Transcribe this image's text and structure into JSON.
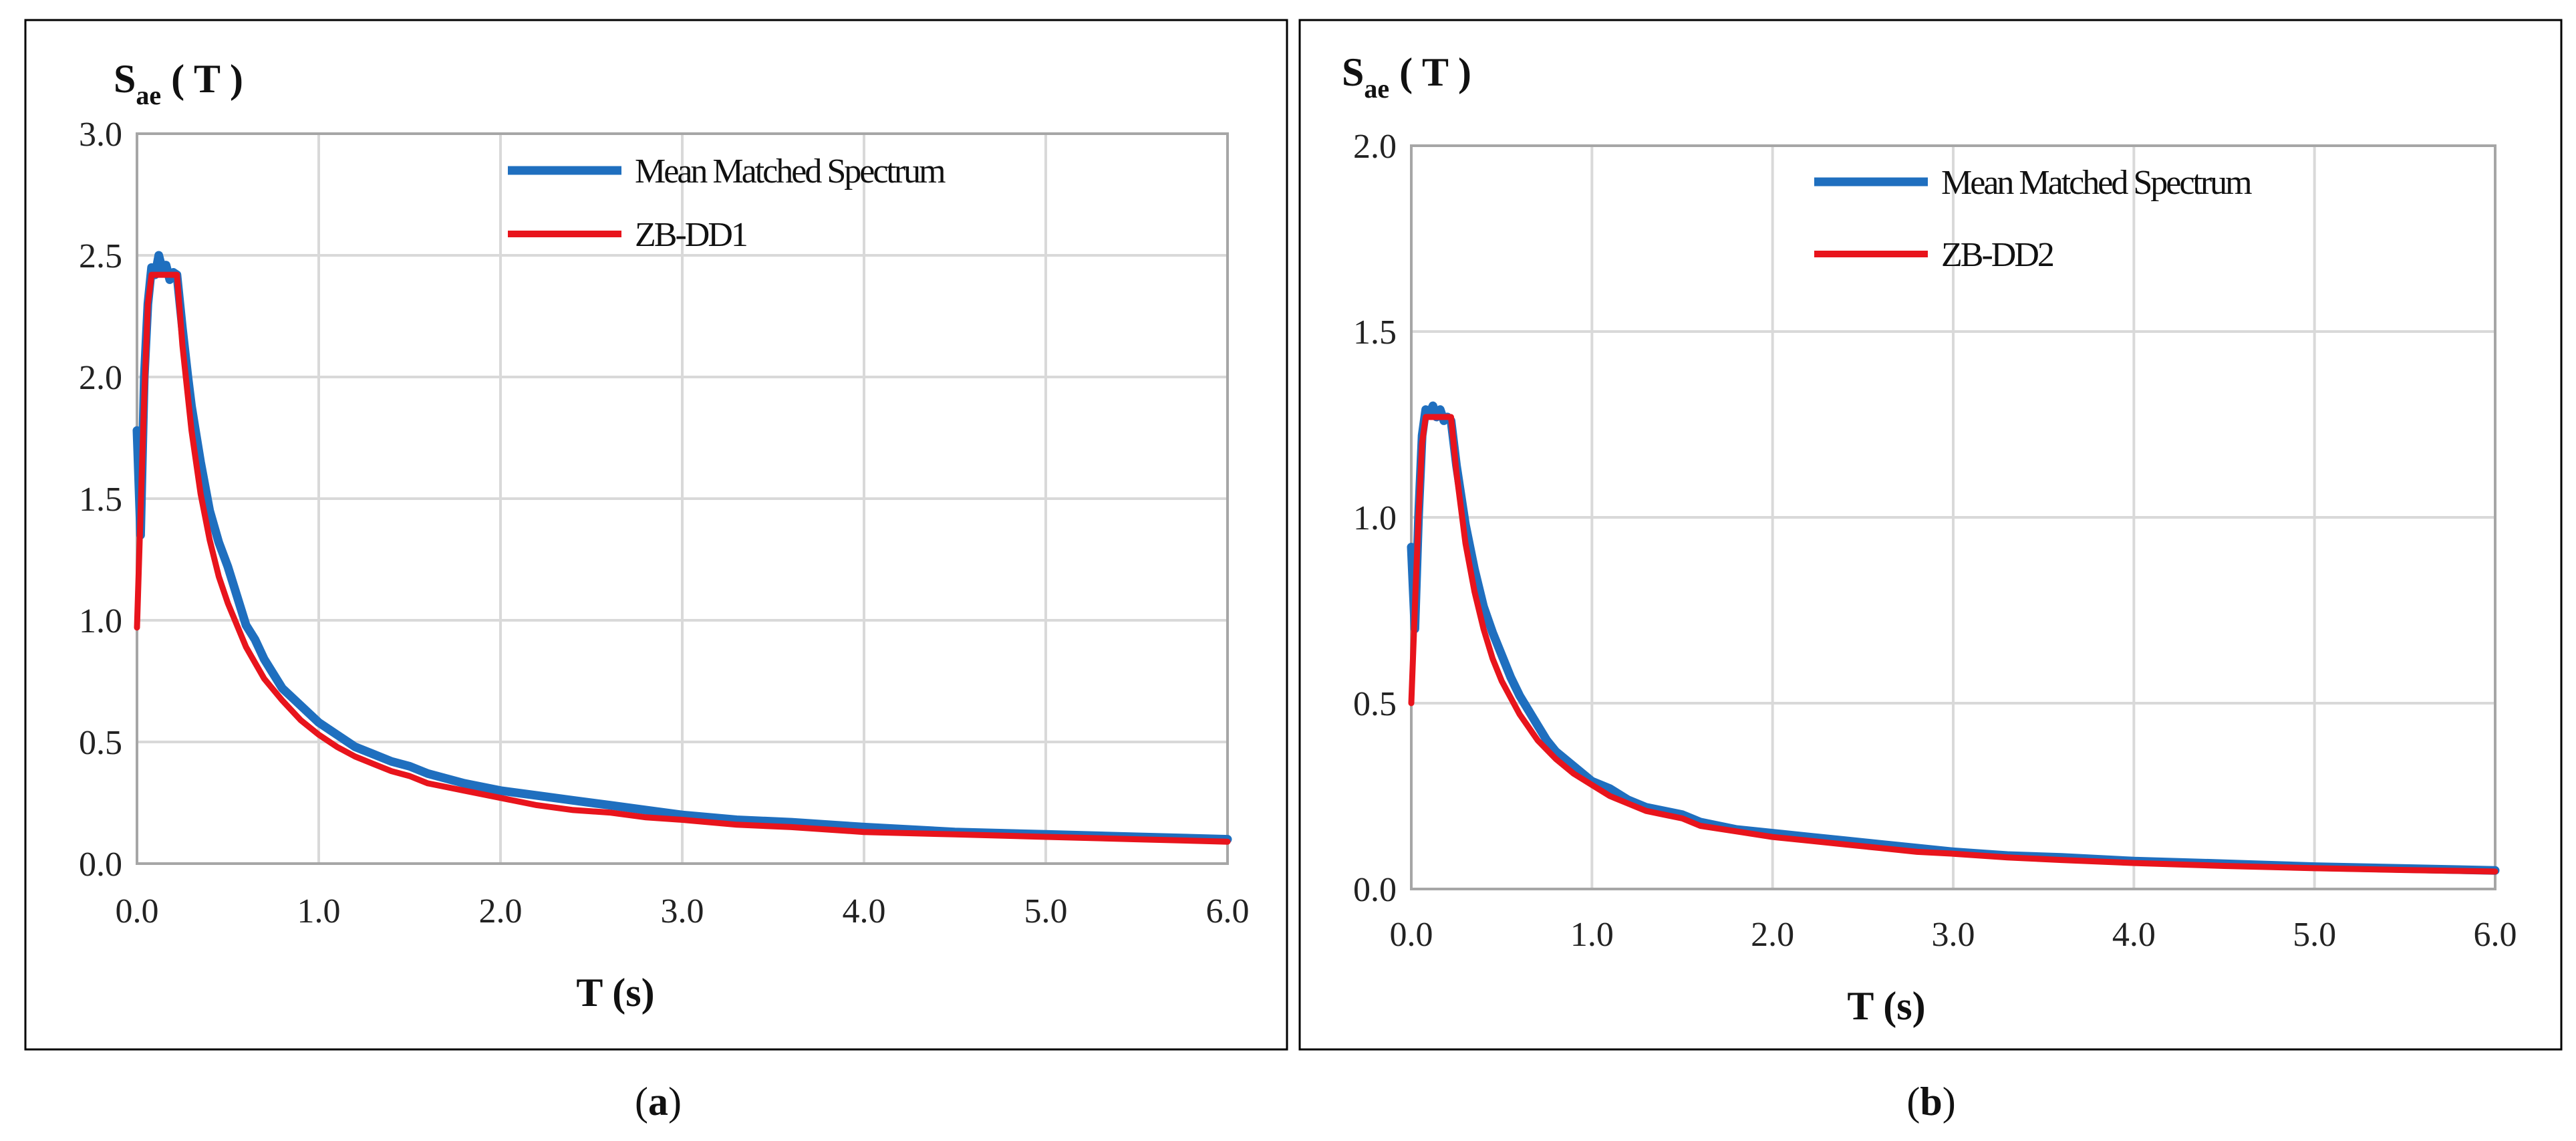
{
  "chart_data": [
    {
      "type": "line",
      "panel": "a",
      "ylabel_main": "S",
      "ylabel_sub": "ae",
      "ylabel_suffix": " ( T )",
      "xlabel": "T (s)",
      "xlim": [
        0,
        6
      ],
      "ylim": [
        0,
        3
      ],
      "x_ticks": [
        "0.0",
        "1.0",
        "2.0",
        "3.0",
        "4.0",
        "5.0",
        "6.0"
      ],
      "y_ticks": [
        "0.0",
        "0.5",
        "1.0",
        "1.5",
        "2.0",
        "2.5",
        "3.0"
      ],
      "grid": true,
      "legend_position": "top-right",
      "series": [
        {
          "name": "Mean Matched Spectrum",
          "color": "#1f6fbf",
          "points": [
            [
              0,
              1.78
            ],
            [
              0.02,
              1.35
            ],
            [
              0.04,
              2.0
            ],
            [
              0.06,
              2.3
            ],
            [
              0.08,
              2.45
            ],
            [
              0.1,
              2.42
            ],
            [
              0.12,
              2.5
            ],
            [
              0.14,
              2.44
            ],
            [
              0.16,
              2.46
            ],
            [
              0.18,
              2.4
            ],
            [
              0.2,
              2.43
            ],
            [
              0.22,
              2.42
            ],
            [
              0.25,
              2.2
            ],
            [
              0.28,
              2.0
            ],
            [
              0.3,
              1.88
            ],
            [
              0.35,
              1.65
            ],
            [
              0.4,
              1.45
            ],
            [
              0.45,
              1.32
            ],
            [
              0.5,
              1.22
            ],
            [
              0.55,
              1.1
            ],
            [
              0.6,
              0.98
            ],
            [
              0.65,
              0.92
            ],
            [
              0.7,
              0.84
            ],
            [
              0.75,
              0.78
            ],
            [
              0.8,
              0.72
            ],
            [
              0.9,
              0.65
            ],
            [
              1.0,
              0.58
            ],
            [
              1.1,
              0.53
            ],
            [
              1.2,
              0.48
            ],
            [
              1.3,
              0.45
            ],
            [
              1.4,
              0.42
            ],
            [
              1.5,
              0.4
            ],
            [
              1.6,
              0.37
            ],
            [
              1.8,
              0.33
            ],
            [
              2.0,
              0.3
            ],
            [
              2.2,
              0.28
            ],
            [
              2.4,
              0.26
            ],
            [
              2.6,
              0.24
            ],
            [
              2.8,
              0.22
            ],
            [
              3.0,
              0.2
            ],
            [
              3.3,
              0.18
            ],
            [
              3.6,
              0.17
            ],
            [
              4.0,
              0.15
            ],
            [
              4.5,
              0.13
            ],
            [
              5.0,
              0.12
            ],
            [
              5.5,
              0.11
            ],
            [
              6.0,
              0.1
            ]
          ]
        },
        {
          "name": "ZB-DD1",
          "color": "#e8141c",
          "points": [
            [
              0,
              0.97
            ],
            [
              0.02,
              1.45
            ],
            [
              0.04,
              1.92
            ],
            [
              0.06,
              2.3
            ],
            [
              0.08,
              2.42
            ],
            [
              0.22,
              2.42
            ],
            [
              0.25,
              2.13
            ],
            [
              0.3,
              1.78
            ],
            [
              0.35,
              1.52
            ],
            [
              0.4,
              1.33
            ],
            [
              0.45,
              1.18
            ],
            [
              0.5,
              1.07
            ],
            [
              0.6,
              0.89
            ],
            [
              0.7,
              0.76
            ],
            [
              0.8,
              0.67
            ],
            [
              0.9,
              0.59
            ],
            [
              1.0,
              0.53
            ],
            [
              1.1,
              0.48
            ],
            [
              1.2,
              0.44
            ],
            [
              1.3,
              0.41
            ],
            [
              1.4,
              0.38
            ],
            [
              1.5,
              0.36
            ],
            [
              1.6,
              0.33
            ],
            [
              1.8,
              0.3
            ],
            [
              2.0,
              0.27
            ],
            [
              2.2,
              0.24
            ],
            [
              2.4,
              0.22
            ],
            [
              2.6,
              0.21
            ],
            [
              2.8,
              0.19
            ],
            [
              3.0,
              0.18
            ],
            [
              3.3,
              0.16
            ],
            [
              3.6,
              0.15
            ],
            [
              4.0,
              0.13
            ],
            [
              4.5,
              0.12
            ],
            [
              5.0,
              0.11
            ],
            [
              5.5,
              0.1
            ],
            [
              6.0,
              0.09
            ]
          ]
        }
      ]
    },
    {
      "type": "line",
      "panel": "b",
      "ylabel_main": "S",
      "ylabel_sub": "ae",
      "ylabel_suffix": " ( T )",
      "xlabel": "T (s)",
      "xlim": [
        0,
        6
      ],
      "ylim": [
        0,
        2
      ],
      "x_ticks": [
        "0.0",
        "1.0",
        "2.0",
        "3.0",
        "4.0",
        "5.0",
        "6.0"
      ],
      "y_ticks": [
        "0.0",
        "0.5",
        "1.0",
        "1.5",
        "2.0"
      ],
      "grid": true,
      "legend_position": "top-right",
      "series": [
        {
          "name": "Mean Matched Spectrum",
          "color": "#1f6fbf",
          "points": [
            [
              0,
              0.92
            ],
            [
              0.02,
              0.7
            ],
            [
              0.04,
              1.0
            ],
            [
              0.06,
              1.22
            ],
            [
              0.08,
              1.29
            ],
            [
              0.1,
              1.28
            ],
            [
              0.12,
              1.3
            ],
            [
              0.14,
              1.27
            ],
            [
              0.16,
              1.29
            ],
            [
              0.18,
              1.26
            ],
            [
              0.2,
              1.27
            ],
            [
              0.22,
              1.26
            ],
            [
              0.25,
              1.14
            ],
            [
              0.3,
              0.98
            ],
            [
              0.35,
              0.86
            ],
            [
              0.4,
              0.76
            ],
            [
              0.45,
              0.69
            ],
            [
              0.5,
              0.63
            ],
            [
              0.55,
              0.57
            ],
            [
              0.6,
              0.52
            ],
            [
              0.65,
              0.48
            ],
            [
              0.7,
              0.44
            ],
            [
              0.75,
              0.4
            ],
            [
              0.8,
              0.37
            ],
            [
              0.9,
              0.33
            ],
            [
              1.0,
              0.29
            ],
            [
              1.1,
              0.27
            ],
            [
              1.2,
              0.24
            ],
            [
              1.3,
              0.22
            ],
            [
              1.4,
              0.21
            ],
            [
              1.5,
              0.2
            ],
            [
              1.6,
              0.18
            ],
            [
              1.8,
              0.16
            ],
            [
              2.0,
              0.15
            ],
            [
              2.2,
              0.14
            ],
            [
              2.4,
              0.13
            ],
            [
              2.6,
              0.12
            ],
            [
              2.8,
              0.11
            ],
            [
              3.0,
              0.1
            ],
            [
              3.3,
              0.09
            ],
            [
              3.6,
              0.085
            ],
            [
              4.0,
              0.075
            ],
            [
              4.5,
              0.068
            ],
            [
              5.0,
              0.06
            ],
            [
              5.5,
              0.055
            ],
            [
              6.0,
              0.05
            ]
          ]
        },
        {
          "name": "ZB-DD2",
          "color": "#e8141c",
          "points": [
            [
              0,
              0.5
            ],
            [
              0.02,
              0.76
            ],
            [
              0.04,
              1.0
            ],
            [
              0.06,
              1.2
            ],
            [
              0.08,
              1.27
            ],
            [
              0.22,
              1.27
            ],
            [
              0.25,
              1.12
            ],
            [
              0.3,
              0.93
            ],
            [
              0.35,
              0.8
            ],
            [
              0.4,
              0.7
            ],
            [
              0.45,
              0.62
            ],
            [
              0.5,
              0.56
            ],
            [
              0.6,
              0.47
            ],
            [
              0.7,
              0.4
            ],
            [
              0.8,
              0.35
            ],
            [
              0.9,
              0.31
            ],
            [
              1.0,
              0.28
            ],
            [
              1.1,
              0.25
            ],
            [
              1.2,
              0.23
            ],
            [
              1.3,
              0.21
            ],
            [
              1.4,
              0.2
            ],
            [
              1.5,
              0.19
            ],
            [
              1.6,
              0.17
            ],
            [
              1.8,
              0.155
            ],
            [
              2.0,
              0.14
            ],
            [
              2.2,
              0.13
            ],
            [
              2.4,
              0.12
            ],
            [
              2.6,
              0.11
            ],
            [
              2.8,
              0.1
            ],
            [
              3.0,
              0.095
            ],
            [
              3.3,
              0.085
            ],
            [
              3.6,
              0.078
            ],
            [
              4.0,
              0.07
            ],
            [
              4.5,
              0.062
            ],
            [
              5.0,
              0.056
            ],
            [
              5.5,
              0.051
            ],
            [
              6.0,
              0.047
            ]
          ]
        }
      ]
    }
  ],
  "captions": {
    "a": {
      "open": "(",
      "letter": "a",
      "close": ")"
    },
    "b": {
      "open": "(",
      "letter": "b",
      "close": ")"
    }
  }
}
